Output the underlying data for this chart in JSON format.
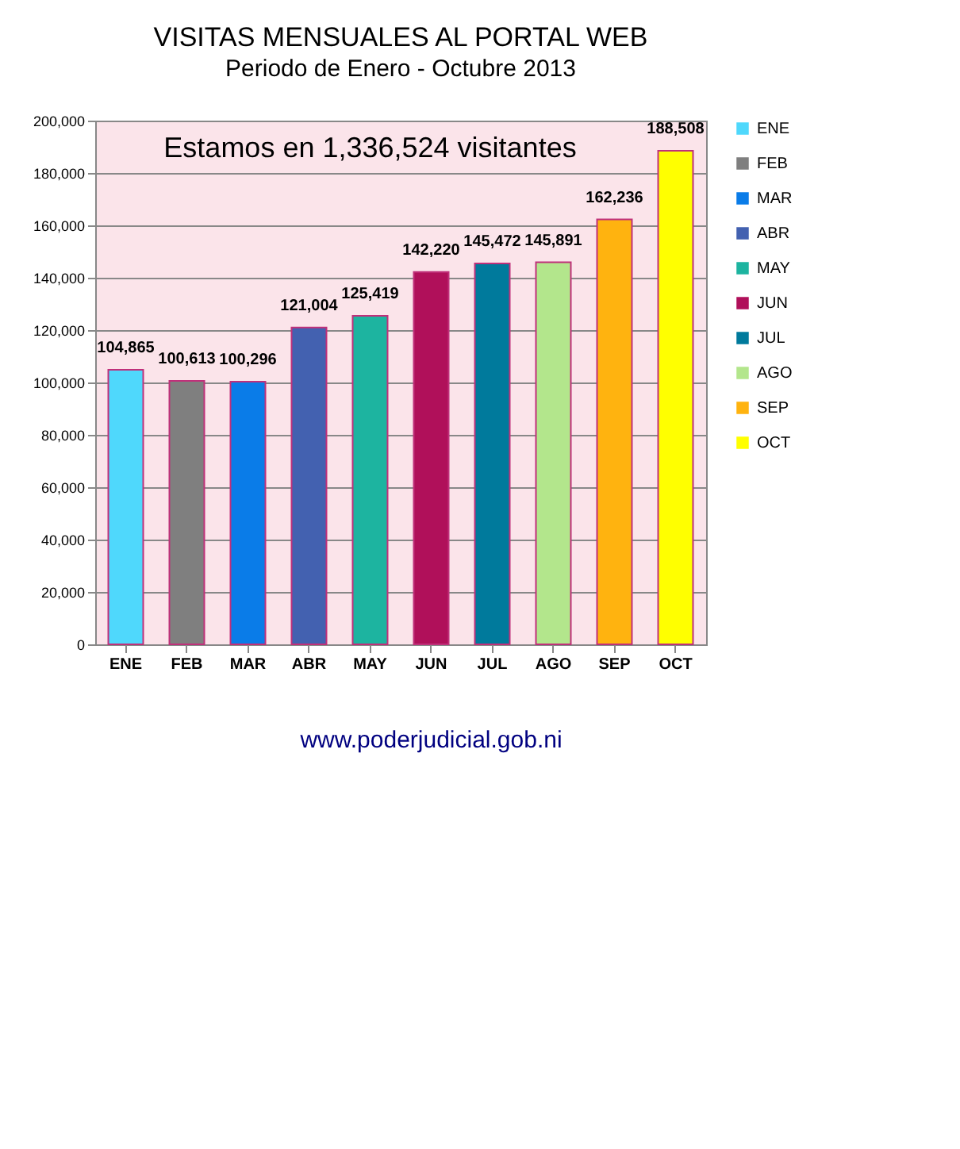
{
  "chart_data": {
    "type": "bar",
    "title": "VISITAS MENSUALES  AL PORTAL WEB",
    "subtitle": "Periodo de Enero - Octubre 2013",
    "categories": [
      "ENE",
      "FEB",
      "MAR",
      "ABR",
      "MAY",
      "JUN",
      "JUL",
      "AGO",
      "SEP",
      "OCT"
    ],
    "stacked": true,
    "series": [
      {
        "name": "ENE",
        "color": "#4fd8fc",
        "values": [
          104865,
          null,
          null,
          null,
          null,
          null,
          null,
          null,
          null,
          null
        ],
        "value_labels": [
          "104,865",
          null,
          null,
          null,
          null,
          null,
          null,
          null,
          null,
          null
        ]
      },
      {
        "name": "FEB",
        "color": "#7f7f7f",
        "values": [
          null,
          100613,
          null,
          null,
          null,
          null,
          null,
          null,
          null,
          null
        ],
        "value_labels": [
          null,
          "100,613",
          null,
          null,
          null,
          null,
          null,
          null,
          null,
          null
        ]
      },
      {
        "name": "MAR",
        "color": "#0a7ce8",
        "values": [
          null,
          null,
          100296,
          null,
          null,
          null,
          null,
          null,
          null,
          null
        ],
        "value_labels": [
          null,
          null,
          "100,296",
          null,
          null,
          null,
          null,
          null,
          null,
          null
        ]
      },
      {
        "name": "ABR",
        "color": "#4361b0",
        "values": [
          null,
          null,
          null,
          121004,
          null,
          null,
          null,
          null,
          null,
          null
        ],
        "value_labels": [
          null,
          null,
          null,
          "121,004",
          null,
          null,
          null,
          null,
          null,
          null
        ]
      },
      {
        "name": "MAY",
        "color": "#1db4a0",
        "values": [
          null,
          null,
          null,
          null,
          125419,
          null,
          null,
          null,
          null,
          null
        ],
        "value_labels": [
          null,
          null,
          null,
          null,
          "125,419",
          null,
          null,
          null,
          null,
          null
        ]
      },
      {
        "name": "JUN",
        "color": "#b0105a",
        "values": [
          null,
          null,
          null,
          null,
          null,
          142220,
          null,
          null,
          null,
          null
        ],
        "value_labels": [
          null,
          null,
          null,
          null,
          null,
          "142,220",
          null,
          null,
          null,
          null
        ]
      },
      {
        "name": "JUL",
        "color": "#007a9c",
        "values": [
          null,
          null,
          null,
          null,
          null,
          null,
          145472,
          null,
          null,
          null
        ],
        "value_labels": [
          null,
          null,
          null,
          null,
          null,
          null,
          "145,472",
          null,
          null,
          null
        ]
      },
      {
        "name": "AGO",
        "color": "#b3e68c",
        "values": [
          null,
          null,
          null,
          null,
          null,
          null,
          null,
          145891,
          null,
          null
        ],
        "value_labels": [
          null,
          null,
          null,
          null,
          null,
          null,
          null,
          "145,891",
          null,
          null
        ]
      },
      {
        "name": "SEP",
        "color": "#ffb30f",
        "values": [
          null,
          null,
          null,
          null,
          null,
          null,
          null,
          null,
          162236,
          null
        ],
        "value_labels": [
          null,
          null,
          null,
          null,
          null,
          null,
          null,
          null,
          "162,236",
          null
        ]
      },
      {
        "name": "OCT",
        "color": "#ffff00",
        "values": [
          null,
          null,
          null,
          null,
          null,
          null,
          null,
          null,
          null,
          188508
        ],
        "value_labels": [
          null,
          null,
          null,
          null,
          null,
          null,
          null,
          null,
          null,
          "188,508"
        ]
      }
    ],
    "ylim": [
      0,
      200000
    ],
    "yticks": [
      {
        "value": 0,
        "label": "0"
      },
      {
        "value": 20000,
        "label": "20,000"
      },
      {
        "value": 40000,
        "label": "40,000"
      },
      {
        "value": 60000,
        "label": "60,000"
      },
      {
        "value": 80000,
        "label": "80,000"
      },
      {
        "value": 100000,
        "label": "100,000"
      },
      {
        "value": 120000,
        "label": "120,000"
      },
      {
        "value": 140000,
        "label": "140,000"
      },
      {
        "value": 160000,
        "label": "160,000"
      },
      {
        "value": 180000,
        "label": "180,000"
      },
      {
        "value": 200000,
        "label": "200,000"
      }
    ],
    "grid": "y",
    "legend": "right",
    "annotations": [
      "Estamos en 1,336,524 visitantes",
      "www.poderjudicial.gob.ni"
    ]
  }
}
